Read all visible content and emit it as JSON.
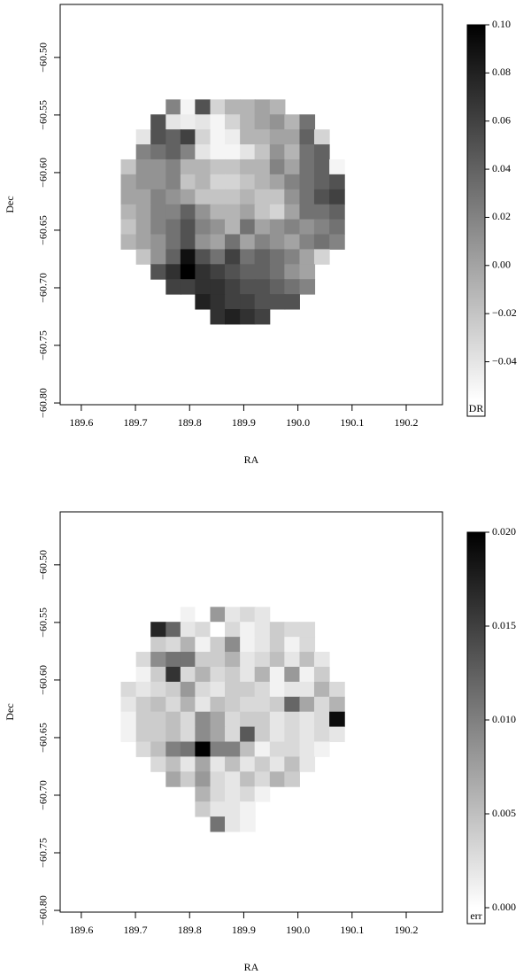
{
  "chart_data": [
    {
      "type": "heatmap",
      "xlabel": "RA",
      "ylabel": "Dec",
      "colorbar_label": "DR",
      "x": [
        189.687,
        189.715,
        189.742,
        189.77,
        189.797,
        189.824,
        189.852,
        189.879,
        189.907,
        189.934,
        189.962,
        189.989,
        190.017,
        190.044,
        190.072
      ],
      "y": [
        -60.543,
        -60.556,
        -60.569,
        -60.582,
        -60.595,
        -60.608,
        -60.621,
        -60.634,
        -60.647,
        -60.66,
        -60.673,
        -60.686,
        -60.699,
        -60.712,
        -60.725
      ],
      "z": [
        [
          null,
          null,
          null,
          0.02,
          -0.05,
          0.05,
          -0.03,
          -0.01,
          -0.01,
          0.0,
          -0.01,
          null,
          null,
          null,
          null
        ],
        [
          null,
          null,
          0.05,
          -0.04,
          -0.045,
          -0.04,
          -0.05,
          -0.03,
          -0.01,
          0.0,
          0.01,
          -0.01,
          0.03,
          null,
          null
        ],
        [
          null,
          -0.04,
          0.05,
          0.04,
          0.06,
          -0.03,
          -0.05,
          -0.045,
          -0.01,
          -0.01,
          0.0,
          0.0,
          0.04,
          -0.03,
          null
        ],
        [
          null,
          0.02,
          0.03,
          0.04,
          0.02,
          -0.04,
          -0.05,
          -0.05,
          -0.04,
          -0.02,
          0.01,
          -0.01,
          0.03,
          0.04,
          null
        ],
        [
          -0.02,
          0.01,
          0.01,
          0.02,
          -0.01,
          -0.01,
          -0.02,
          -0.02,
          -0.01,
          -0.01,
          0.02,
          0.0,
          0.03,
          0.04,
          -0.05
        ],
        [
          0.0,
          0.01,
          0.01,
          0.02,
          -0.02,
          -0.01,
          -0.03,
          -0.03,
          -0.02,
          -0.01,
          0.0,
          0.02,
          0.03,
          0.04,
          0.05
        ],
        [
          0.0,
          0.0,
          0.02,
          0.01,
          0.0,
          -0.02,
          -0.02,
          -0.02,
          -0.01,
          -0.02,
          -0.02,
          0.01,
          0.03,
          0.05,
          0.06
        ],
        [
          -0.01,
          0.0,
          0.02,
          0.02,
          0.04,
          0.01,
          -0.01,
          -0.01,
          0.0,
          -0.02,
          -0.03,
          0.0,
          0.03,
          0.03,
          0.04
        ],
        [
          -0.02,
          0.0,
          0.02,
          0.03,
          0.05,
          0.02,
          0.01,
          -0.01,
          0.03,
          0.0,
          0.01,
          0.02,
          0.01,
          0.02,
          0.03
        ],
        [
          -0.01,
          0.0,
          0.01,
          0.03,
          0.05,
          0.01,
          0.0,
          0.03,
          0.0,
          0.02,
          0.01,
          0.0,
          0.02,
          0.03,
          0.02
        ],
        [
          null,
          -0.02,
          0.01,
          0.04,
          0.09,
          0.05,
          0.03,
          0.06,
          0.03,
          0.04,
          0.03,
          0.02,
          0.0,
          -0.03,
          null
        ],
        [
          null,
          null,
          0.05,
          0.07,
          0.1,
          0.07,
          0.06,
          0.05,
          0.04,
          0.04,
          0.03,
          0.01,
          0.0,
          null,
          null
        ],
        [
          null,
          null,
          null,
          0.06,
          0.06,
          0.07,
          0.07,
          0.06,
          0.05,
          0.05,
          0.04,
          0.03,
          0.02,
          null,
          null
        ],
        [
          null,
          null,
          null,
          null,
          null,
          0.08,
          0.07,
          0.06,
          0.06,
          0.05,
          0.05,
          0.05,
          null,
          null,
          null
        ],
        [
          null,
          null,
          null,
          null,
          null,
          null,
          0.07,
          0.08,
          0.07,
          0.06,
          null,
          null,
          null,
          null,
          null
        ]
      ],
      "xlim": [
        189.561,
        190.267
      ],
      "ylim": [
        -60.8015,
        -60.454
      ],
      "zlim": [
        -0.056,
        0.1
      ],
      "xticks": [
        189.6,
        189.7,
        189.8,
        189.9,
        {
          "value": 190.0,
          "label": "190.0"
        },
        190.1,
        190.2
      ],
      "yticks": [
        {
          "value": -60.5,
          "label": "−60.50"
        },
        {
          "value": -60.55,
          "label": "−60.55"
        },
        {
          "value": -60.6,
          "label": "−60.60"
        },
        {
          "value": -60.65,
          "label": "−60.65"
        },
        {
          "value": -60.7,
          "label": "−60.70"
        },
        {
          "value": -60.75,
          "label": "−60.75"
        },
        {
          "value": -60.8,
          "label": "−60.80"
        }
      ],
      "zticks": [
        {
          "value": 0.1,
          "label": "0.10"
        },
        {
          "value": 0.08,
          "label": "0.08"
        },
        {
          "value": 0.06,
          "label": "0.06"
        },
        {
          "value": 0.04,
          "label": "0.04"
        },
        {
          "value": 0.02,
          "label": "0.02"
        },
        {
          "value": 0.0,
          "label": "0.00"
        },
        {
          "value": -0.02,
          "label": "−0.02"
        },
        {
          "value": -0.04,
          "label": "−0.04"
        }
      ]
    },
    {
      "type": "heatmap",
      "xlabel": "RA",
      "ylabel": "Dec",
      "colorbar_label": "err",
      "x": [
        189.687,
        189.715,
        189.742,
        189.77,
        189.797,
        189.824,
        189.852,
        189.879,
        189.907,
        189.934,
        189.962,
        189.989,
        190.017,
        190.044,
        190.072
      ],
      "y": [
        -60.543,
        -60.556,
        -60.569,
        -60.582,
        -60.595,
        -60.608,
        -60.621,
        -60.634,
        -60.647,
        -60.66,
        -60.673,
        -60.686,
        -60.699,
        -60.712,
        -60.725
      ],
      "z": [
        [
          null,
          null,
          null,
          null,
          0.001,
          0.0,
          0.008,
          0.002,
          0.003,
          0.002,
          null,
          null,
          null,
          null,
          null
        ],
        [
          null,
          null,
          0.017,
          0.012,
          0.002,
          0.003,
          0.0,
          0.003,
          0.001,
          0.002,
          0.004,
          0.003,
          0.003,
          null,
          null
        ],
        [
          null,
          null,
          0.004,
          0.003,
          0.006,
          0.001,
          0.004,
          0.009,
          0.001,
          0.002,
          0.004,
          0.001,
          0.003,
          null,
          null
        ],
        [
          null,
          0.003,
          0.009,
          0.011,
          0.011,
          0.004,
          0.004,
          0.006,
          0.002,
          0.003,
          0.005,
          0.002,
          0.005,
          0.002,
          null
        ],
        [
          null,
          0.001,
          0.004,
          0.016,
          0.003,
          0.006,
          0.003,
          0.004,
          0.002,
          0.006,
          0.001,
          0.008,
          0.001,
          0.004,
          null
        ],
        [
          0.003,
          0.002,
          0.003,
          0.004,
          0.008,
          0.003,
          0.002,
          0.004,
          0.004,
          0.003,
          0.001,
          0.002,
          0.002,
          0.006,
          0.003
        ],
        [
          0.002,
          0.004,
          0.005,
          0.003,
          0.006,
          0.002,
          0.005,
          0.004,
          0.003,
          0.003,
          0.004,
          0.012,
          0.007,
          0.003,
          0.006
        ],
        [
          0.001,
          0.004,
          0.004,
          0.005,
          0.003,
          0.009,
          0.007,
          0.003,
          0.004,
          0.004,
          0.002,
          0.003,
          0.002,
          0.003,
          0.019
        ],
        [
          0.001,
          0.004,
          0.004,
          0.005,
          0.003,
          0.009,
          0.007,
          0.003,
          0.013,
          0.004,
          0.002,
          0.003,
          0.002,
          0.003,
          0.002
        ],
        [
          null,
          0.003,
          0.005,
          0.01,
          0.011,
          0.02,
          0.01,
          0.01,
          0.005,
          0.001,
          0.003,
          0.003,
          0.002,
          0.001,
          null
        ],
        [
          null,
          null,
          0.003,
          0.005,
          0.002,
          0.007,
          0.002,
          0.005,
          0.002,
          0.004,
          0.002,
          0.005,
          0.002,
          null,
          null
        ],
        [
          null,
          null,
          null,
          0.007,
          0.004,
          0.008,
          0.003,
          0.002,
          0.005,
          0.003,
          0.006,
          0.004,
          null,
          null,
          null
        ],
        [
          null,
          null,
          null,
          null,
          null,
          0.006,
          0.003,
          0.002,
          0.003,
          0.001,
          null,
          null,
          null,
          null,
          null
        ],
        [
          null,
          null,
          null,
          null,
          null,
          0.004,
          0.002,
          0.002,
          0.001,
          null,
          null,
          null,
          null,
          null,
          null
        ],
        [
          null,
          null,
          null,
          null,
          null,
          null,
          0.011,
          0.002,
          0.001,
          null,
          null,
          null,
          null,
          null,
          null
        ]
      ],
      "xlim": [
        189.561,
        190.267
      ],
      "ylim": [
        -60.8015,
        -60.454
      ],
      "zlim": [
        0.0,
        0.02
      ],
      "xticks": [
        189.6,
        189.7,
        189.8,
        189.9,
        {
          "value": 190.0,
          "label": "190.0"
        },
        190.1,
        190.2
      ],
      "yticks": [
        {
          "value": -60.5,
          "label": "−60.50"
        },
        {
          "value": -60.55,
          "label": "−60.55"
        },
        {
          "value": -60.6,
          "label": "−60.60"
        },
        {
          "value": -60.65,
          "label": "−60.65"
        },
        {
          "value": -60.7,
          "label": "−60.70"
        },
        {
          "value": -60.75,
          "label": "−60.75"
        },
        {
          "value": -60.8,
          "label": "−60.80"
        }
      ],
      "zticks": [
        {
          "value": 0.02,
          "label": "0.020"
        },
        {
          "value": 0.015,
          "label": "0.015"
        },
        {
          "value": 0.01,
          "label": "0.010"
        },
        {
          "value": 0.005,
          "label": "0.005"
        },
        {
          "value": 0.0,
          "label": "0.000"
        }
      ]
    }
  ]
}
